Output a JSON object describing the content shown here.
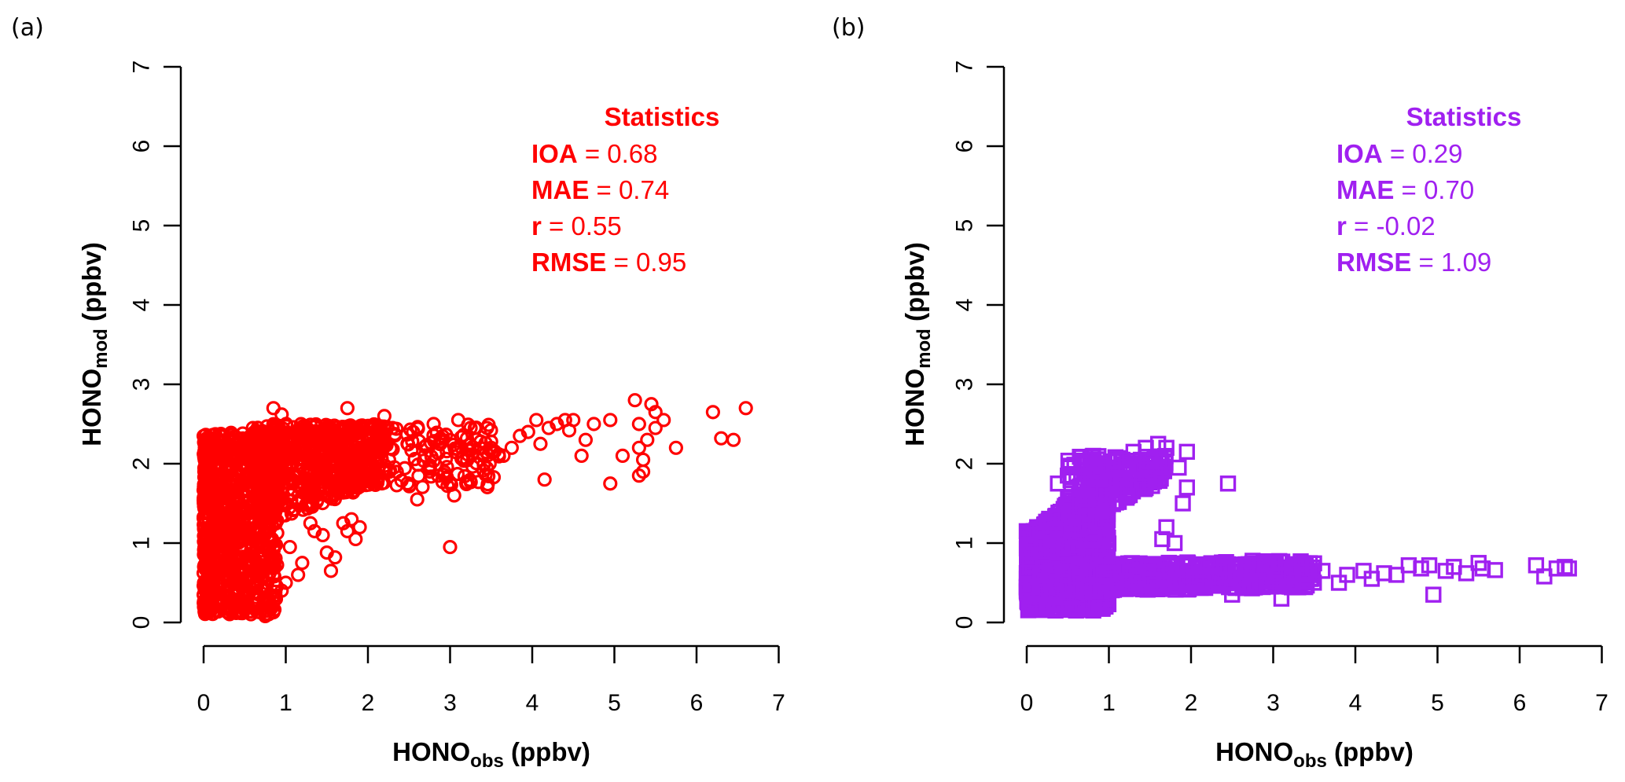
{
  "chart_data": [
    {
      "panel": "(a)",
      "type": "scatter",
      "title": "",
      "xlabel": {
        "main": "HONO",
        "sub": "obs",
        "unit": " (ppbv)"
      },
      "ylabel": {
        "main": "HONO",
        "sub": "mod",
        "unit": " (ppbv)"
      },
      "xlim": [
        0,
        7
      ],
      "ylim": [
        0,
        7
      ],
      "xticks": [
        "0",
        "1",
        "2",
        "3",
        "4",
        "5",
        "6",
        "7"
      ],
      "yticks": [
        "0",
        "1",
        "2",
        "3",
        "4",
        "5",
        "6",
        "7"
      ],
      "grid": false,
      "marker": "circle",
      "color": "#FF0000",
      "stats": {
        "title": "Statistics",
        "items": [
          {
            "key": "IOA",
            "value": "0.68"
          },
          {
            "key": "MAE",
            "value": "0.74"
          },
          {
            "key": "r",
            "value": "0.55"
          },
          {
            "key": "RMSE",
            "value": "0.95"
          }
        ]
      },
      "dense_regions": [
        {
          "x": [
            0.0,
            0.9
          ],
          "y": [
            0.1,
            2.4
          ],
          "n": 900
        },
        {
          "x": [
            0.6,
            2.2
          ],
          "y": [
            1.2,
            2.5
          ],
          "n": 500
        },
        {
          "x": [
            0.8,
            3.6
          ],
          "y": [
            1.7,
            2.5
          ],
          "n": 260
        }
      ],
      "points": [
        [
          0.05,
          2.25
        ],
        [
          0.03,
          1.9
        ],
        [
          0.02,
          1.62
        ],
        [
          0.04,
          1.4
        ],
        [
          0.05,
          1.15
        ],
        [
          0.06,
          0.95
        ],
        [
          0.08,
          0.7
        ],
        [
          0.1,
          0.45
        ],
        [
          0.25,
          0.25
        ],
        [
          0.3,
          0.12
        ],
        [
          0.75,
          0.08
        ],
        [
          0.45,
          0.15
        ],
        [
          0.85,
          2.7
        ],
        [
          0.95,
          2.62
        ],
        [
          0.6,
          2.45
        ],
        [
          0.7,
          2.35
        ],
        [
          1.05,
          0.95
        ],
        [
          1.2,
          0.75
        ],
        [
          1.0,
          0.5
        ],
        [
          1.15,
          0.6
        ],
        [
          0.95,
          0.4
        ],
        [
          1.55,
          0.65
        ],
        [
          1.5,
          0.88
        ],
        [
          1.6,
          0.82
        ],
        [
          1.3,
          1.25
        ],
        [
          1.35,
          1.15
        ],
        [
          1.45,
          1.1
        ],
        [
          1.7,
          1.25
        ],
        [
          1.75,
          1.15
        ],
        [
          1.85,
          1.05
        ],
        [
          1.8,
          1.3
        ],
        [
          1.9,
          1.2
        ],
        [
          1.75,
          2.7
        ],
        [
          2.2,
          2.6
        ],
        [
          2.3,
          2.45
        ],
        [
          2.6,
          1.55
        ],
        [
          2.55,
          2.4
        ],
        [
          2.8,
          2.5
        ],
        [
          3.0,
          2.3
        ],
        [
          3.05,
          1.6
        ],
        [
          3.0,
          0.95
        ],
        [
          3.1,
          2.55
        ],
        [
          3.3,
          2.45
        ],
        [
          3.45,
          2.45
        ],
        [
          3.5,
          2.2
        ],
        [
          3.65,
          2.1
        ],
        [
          3.75,
          2.2
        ],
        [
          3.85,
          2.35
        ],
        [
          3.95,
          2.4
        ],
        [
          4.05,
          2.55
        ],
        [
          4.1,
          2.25
        ],
        [
          4.15,
          1.8
        ],
        [
          4.2,
          2.45
        ],
        [
          4.3,
          2.5
        ],
        [
          4.4,
          2.55
        ],
        [
          4.45,
          2.42
        ],
        [
          4.5,
          2.55
        ],
        [
          4.6,
          2.1
        ],
        [
          4.65,
          2.3
        ],
        [
          4.75,
          2.5
        ],
        [
          4.95,
          2.55
        ],
        [
          4.95,
          1.75
        ],
        [
          5.1,
          2.1
        ],
        [
          5.25,
          2.8
        ],
        [
          5.3,
          2.5
        ],
        [
          5.3,
          2.2
        ],
        [
          5.3,
          1.85
        ],
        [
          5.35,
          2.05
        ],
        [
          5.35,
          1.9
        ],
        [
          5.4,
          2.3
        ],
        [
          5.45,
          2.75
        ],
        [
          5.5,
          2.65
        ],
        [
          5.5,
          2.45
        ],
        [
          5.6,
          2.55
        ],
        [
          5.75,
          2.2
        ],
        [
          6.2,
          2.65
        ],
        [
          6.3,
          2.32
        ],
        [
          6.45,
          2.3
        ],
        [
          6.6,
          2.7
        ]
      ]
    },
    {
      "panel": "(b)",
      "type": "scatter",
      "title": "",
      "xlabel": {
        "main": "HONO",
        "sub": "obs",
        "unit": " (ppbv)"
      },
      "ylabel": {
        "main": "HONO",
        "sub": "mod",
        "unit": " (ppbv)"
      },
      "xlim": [
        0,
        7
      ],
      "ylim": [
        0,
        7
      ],
      "xticks": [
        "0",
        "1",
        "2",
        "3",
        "4",
        "5",
        "6",
        "7"
      ],
      "yticks": [
        "0",
        "1",
        "2",
        "3",
        "4",
        "5",
        "6",
        "7"
      ],
      "grid": false,
      "marker": "square",
      "color": "#A020F0",
      "stats": {
        "title": "Statistics",
        "items": [
          {
            "key": "IOA",
            "value": "0.29"
          },
          {
            "key": "MAE",
            "value": "0.70"
          },
          {
            "key": "r",
            "value": "-0.02"
          },
          {
            "key": "RMSE",
            "value": "1.09"
          }
        ]
      },
      "dense_regions": [
        {
          "x": [
            0.0,
            1.0
          ],
          "y": [
            0.15,
            1.85
          ],
          "n": 900
        },
        {
          "x": [
            0.5,
            1.7
          ],
          "y": [
            1.2,
            2.1
          ],
          "n": 200
        },
        {
          "x": [
            0.0,
            3.5
          ],
          "y": [
            0.3,
            0.75
          ],
          "n": 700
        }
      ],
      "points": [
        [
          0.0,
          1.15
        ],
        [
          0.02,
          0.95
        ],
        [
          0.0,
          0.45
        ],
        [
          0.03,
          0.2
        ],
        [
          0.35,
          0.15
        ],
        [
          0.6,
          0.15
        ],
        [
          0.5,
          1.85
        ],
        [
          0.38,
          1.75
        ],
        [
          0.72,
          2.0
        ],
        [
          0.9,
          1.9
        ],
        [
          1.0,
          1.95
        ],
        [
          1.15,
          2.05
        ],
        [
          1.3,
          2.15
        ],
        [
          1.45,
          2.2
        ],
        [
          1.6,
          2.25
        ],
        [
          1.7,
          2.2
        ],
        [
          1.95,
          2.15
        ],
        [
          1.85,
          1.95
        ],
        [
          1.95,
          1.7
        ],
        [
          1.9,
          1.5
        ],
        [
          2.45,
          1.75
        ],
        [
          1.7,
          1.2
        ],
        [
          1.65,
          1.05
        ],
        [
          1.8,
          1.0
        ],
        [
          2.5,
          0.35
        ],
        [
          2.0,
          0.65
        ],
        [
          2.4,
          0.7
        ],
        [
          2.6,
          0.55
        ],
        [
          2.9,
          0.75
        ],
        [
          3.1,
          0.3
        ],
        [
          3.2,
          0.45
        ],
        [
          3.4,
          0.6
        ],
        [
          3.6,
          0.65
        ],
        [
          3.8,
          0.5
        ],
        [
          3.9,
          0.6
        ],
        [
          4.1,
          0.65
        ],
        [
          4.2,
          0.55
        ],
        [
          4.35,
          0.62
        ],
        [
          4.5,
          0.6
        ],
        [
          4.65,
          0.72
        ],
        [
          4.8,
          0.68
        ],
        [
          4.95,
          0.35
        ],
        [
          4.9,
          0.72
        ],
        [
          5.1,
          0.65
        ],
        [
          5.2,
          0.7
        ],
        [
          5.35,
          0.62
        ],
        [
          5.5,
          0.75
        ],
        [
          5.55,
          0.68
        ],
        [
          5.7,
          0.66
        ],
        [
          6.2,
          0.72
        ],
        [
          6.3,
          0.58
        ],
        [
          6.45,
          0.68
        ],
        [
          6.55,
          0.7
        ],
        [
          6.6,
          0.68
        ]
      ]
    }
  ]
}
